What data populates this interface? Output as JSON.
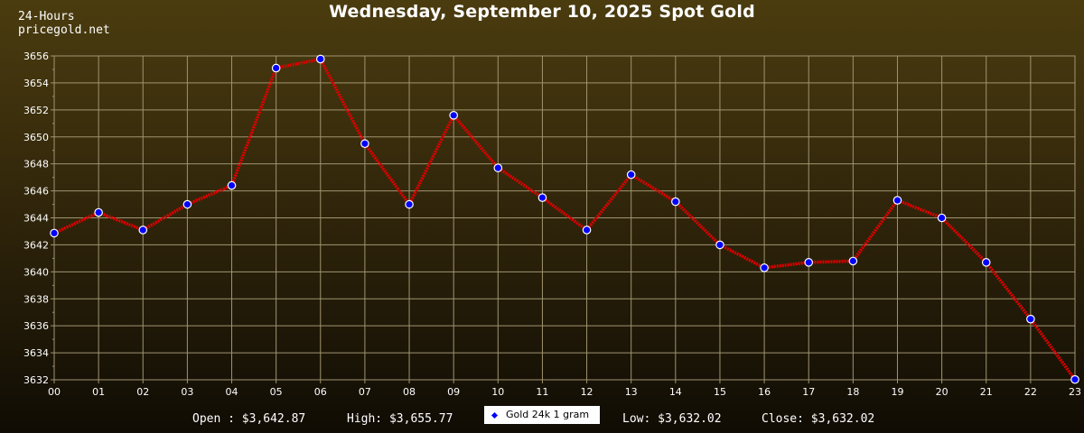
{
  "brand": {
    "line1": "24-Hours",
    "line2": "pricegold.net"
  },
  "stats": {
    "open": "Open : $3,642.87",
    "high": "High: $3,655.77",
    "low": "Low: $3,632.02",
    "close": "Close: $3,632.02"
  },
  "colors": {
    "line": "#e00000",
    "marker_fill": "#0000ff",
    "marker_stroke": "#ffffff",
    "grid": "#a09470",
    "text": "#ffffff"
  },
  "chart_data": {
    "type": "line",
    "title": "Wednesday, September 10, 2025 Spot Gold",
    "xlabel": "",
    "ylabel": "",
    "categories": [
      "00",
      "01",
      "02",
      "03",
      "04",
      "05",
      "06",
      "07",
      "08",
      "09",
      "10",
      "11",
      "12",
      "13",
      "14",
      "15",
      "16",
      "17",
      "18",
      "19",
      "20",
      "21",
      "22",
      "23"
    ],
    "series": [
      {
        "name": "Gold 24k 1 gram",
        "values": [
          3642.87,
          3644.4,
          3643.1,
          3645.0,
          3646.4,
          3655.1,
          3655.77,
          3649.5,
          3645.0,
          3651.6,
          3647.7,
          3645.5,
          3643.1,
          3647.2,
          3645.2,
          3642.0,
          3640.3,
          3640.7,
          3640.8,
          3645.3,
          3644.0,
          3640.7,
          3636.5,
          3632.02
        ]
      }
    ],
    "ylim": [
      3632,
      3656
    ],
    "yticks": [
      "3632",
      "3634",
      "3636",
      "3638",
      "3640",
      "3642",
      "3644",
      "3646",
      "3648",
      "3650",
      "3652",
      "3654",
      "3656"
    ],
    "grid": true,
    "legend": "bottom-center"
  }
}
